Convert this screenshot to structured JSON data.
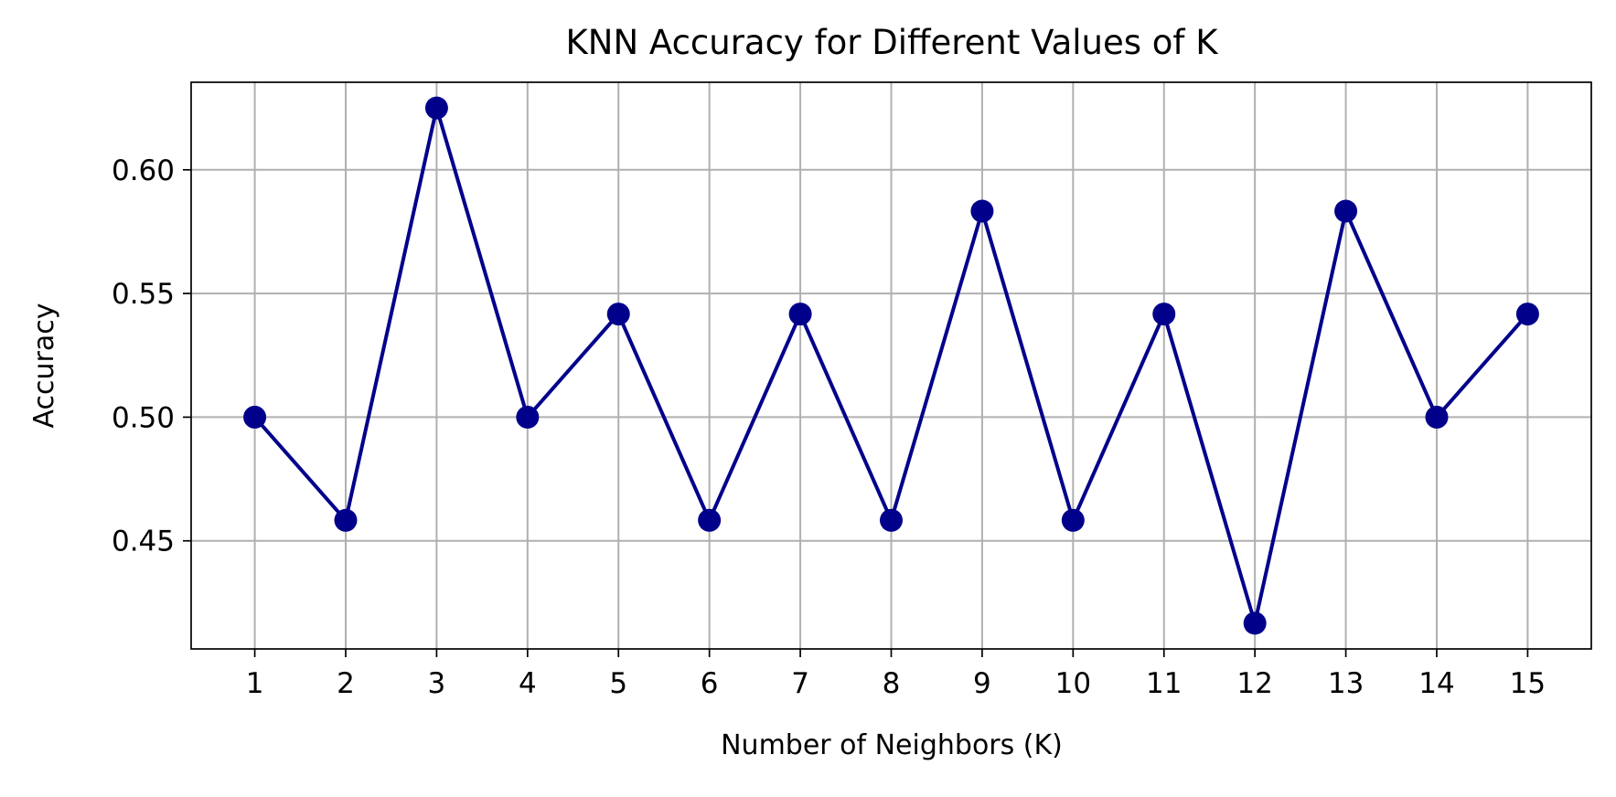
{
  "chart_data": {
    "type": "line",
    "title": "KNN Accuracy for Different Values of K",
    "xlabel": "Number of Neighbors (K)",
    "ylabel": "Accuracy",
    "x": [
      1,
      2,
      3,
      4,
      5,
      6,
      7,
      8,
      9,
      10,
      11,
      12,
      13,
      14,
      15
    ],
    "series": [
      {
        "values": [
          0.5,
          0.4583,
          0.625,
          0.5,
          0.5417,
          0.4583,
          0.5417,
          0.4583,
          0.5833,
          0.4583,
          0.5417,
          0.4167,
          0.5833,
          0.5,
          0.5417
        ]
      }
    ],
    "xticks": [
      "1",
      "2",
      "3",
      "4",
      "5",
      "6",
      "7",
      "8",
      "9",
      "10",
      "11",
      "12",
      "13",
      "14",
      "15"
    ],
    "yticks": [
      "0.45",
      "0.50",
      "0.55",
      "0.60"
    ],
    "ytick_values": [
      0.45,
      0.5,
      0.55,
      0.6
    ],
    "xlim": [
      0.3,
      15.7
    ],
    "ylim": [
      0.4063,
      0.6354
    ],
    "grid": true,
    "marker": "circle",
    "line_color": "#00008b",
    "grid_color": "#b0b0b0"
  }
}
